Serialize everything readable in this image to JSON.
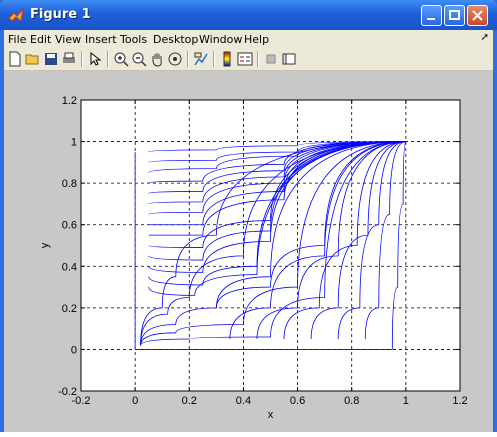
{
  "window": {
    "title": "Figure 1"
  },
  "menu": [
    "File",
    "Edit",
    "View",
    "Insert",
    "Tools",
    "Desktop",
    "Window",
    "Help"
  ],
  "menu_underline": [
    0,
    0,
    0,
    0,
    0,
    0,
    0,
    0
  ],
  "toolbar": {
    "icons": [
      "new-file-icon",
      "open-folder-icon",
      "save-icon",
      "print-icon",
      "pointer-icon",
      "zoom-in-icon",
      "zoom-out-icon",
      "pan-hand-icon",
      "rotate-3d-icon",
      "data-cursor-icon",
      "colorbar-icon",
      "legend-icon",
      "hide-plot-tools-icon",
      "show-plot-tools-icon"
    ]
  },
  "colors": {
    "line": "#0000ff",
    "title_bar": "#1e5fd9",
    "figure_bg": "#c8c8c8"
  },
  "chart_data": {
    "type": "line",
    "title": "",
    "xlabel": "x",
    "ylabel": "y",
    "xlim": [
      -0.2,
      1.2
    ],
    "ylim": [
      -0.2,
      1.2
    ],
    "xticks": [
      "-0.2",
      "0",
      "0.2",
      "0.4",
      "0.6",
      "0.8",
      "1",
      "1.2"
    ],
    "yticks": [
      "-0.2",
      "0",
      "0.2",
      "0.4",
      "0.6",
      "0.8",
      "1",
      "1.2"
    ],
    "grid": true,
    "description_series": "Family of trajectories in the unit square: many curves from the upper-left boundary sweeping toward the point (1, 1), and curves from the lower region spreading from near (0, 0) and (0.2, 0.2) toward (1, 1).",
    "series": [
      {
        "values": [
          [
            0.05,
            0.95
          ],
          [
            0.3,
            0.96
          ],
          [
            0.6,
            0.98
          ],
          [
            1,
            1
          ]
        ]
      },
      {
        "values": [
          [
            0.05,
            0.9
          ],
          [
            0.3,
            0.91
          ],
          [
            0.6,
            0.95
          ],
          [
            1,
            1
          ]
        ]
      },
      {
        "values": [
          [
            0.05,
            0.85
          ],
          [
            0.3,
            0.87
          ],
          [
            0.6,
            0.93
          ],
          [
            1,
            1
          ]
        ]
      },
      {
        "values": [
          [
            0.05,
            0.8
          ],
          [
            0.25,
            0.81
          ],
          [
            0.55,
            0.89
          ],
          [
            1,
            1
          ]
        ]
      },
      {
        "values": [
          [
            0.05,
            0.75
          ],
          [
            0.25,
            0.76
          ],
          [
            0.55,
            0.86
          ],
          [
            1,
            1
          ]
        ]
      },
      {
        "values": [
          [
            0.05,
            0.7
          ],
          [
            0.25,
            0.71
          ],
          [
            0.55,
            0.83
          ],
          [
            1,
            1
          ]
        ]
      },
      {
        "values": [
          [
            0.05,
            0.65
          ],
          [
            0.25,
            0.66
          ],
          [
            0.55,
            0.8
          ],
          [
            1,
            1
          ]
        ]
      },
      {
        "values": [
          [
            0.05,
            0.6
          ],
          [
            0.25,
            0.6
          ],
          [
            0.55,
            0.76
          ],
          [
            1,
            1
          ]
        ]
      },
      {
        "values": [
          [
            0.05,
            0.55
          ],
          [
            0.25,
            0.55
          ],
          [
            0.55,
            0.72
          ],
          [
            1,
            1
          ]
        ]
      },
      {
        "values": [
          [
            0.05,
            0.5
          ],
          [
            0.25,
            0.49
          ],
          [
            0.5,
            0.62
          ],
          [
            1,
            1
          ]
        ]
      },
      {
        "values": [
          [
            0.05,
            0.45
          ],
          [
            0.25,
            0.43
          ],
          [
            0.5,
            0.57
          ],
          [
            1,
            1
          ]
        ]
      },
      {
        "values": [
          [
            0.05,
            0.4
          ],
          [
            0.25,
            0.37
          ],
          [
            0.5,
            0.52
          ],
          [
            1,
            1
          ]
        ]
      },
      {
        "values": [
          [
            0.05,
            0.35
          ],
          [
            0.25,
            0.31
          ],
          [
            0.45,
            0.4
          ],
          [
            1,
            1
          ]
        ]
      },
      {
        "values": [
          [
            0.05,
            0.3
          ],
          [
            0.22,
            0.26
          ],
          [
            0.45,
            0.36
          ],
          [
            1,
            1
          ]
        ]
      },
      {
        "values": [
          [
            0.02,
            0.02
          ],
          [
            0.1,
            0.2
          ],
          [
            0.15,
            0.35
          ],
          [
            0.3,
            0.55
          ],
          [
            1,
            1
          ]
        ]
      },
      {
        "values": [
          [
            0.02,
            0.02
          ],
          [
            0.12,
            0.17
          ],
          [
            0.2,
            0.25
          ],
          [
            0.4,
            0.45
          ],
          [
            1,
            1
          ]
        ]
      },
      {
        "values": [
          [
            0.02,
            0.02
          ],
          [
            0.15,
            0.12
          ],
          [
            0.3,
            0.2
          ],
          [
            0.5,
            0.35
          ],
          [
            1,
            1
          ]
        ]
      },
      {
        "values": [
          [
            0.02,
            0.02
          ],
          [
            0.15,
            0.08
          ],
          [
            0.4,
            0.12
          ],
          [
            0.6,
            0.3
          ],
          [
            1,
            1
          ]
        ]
      },
      {
        "values": [
          [
            0.02,
            0.02
          ],
          [
            0.2,
            0.05
          ],
          [
            0.5,
            0.06
          ],
          [
            0.7,
            0.25
          ],
          [
            1,
            1
          ]
        ]
      },
      {
        "values": [
          [
            0.3,
            0.2
          ],
          [
            0.5,
            0.3
          ],
          [
            0.7,
            0.5
          ],
          [
            1,
            1
          ]
        ]
      },
      {
        "values": [
          [
            0.35,
            0.05
          ],
          [
            0.5,
            0.2
          ],
          [
            0.7,
            0.45
          ],
          [
            1,
            1
          ]
        ]
      },
      {
        "values": [
          [
            0.45,
            0.05
          ],
          [
            0.6,
            0.2
          ],
          [
            0.75,
            0.45
          ],
          [
            1,
            1
          ]
        ]
      },
      {
        "values": [
          [
            0.55,
            0.05
          ],
          [
            0.68,
            0.2
          ],
          [
            0.82,
            0.5
          ],
          [
            1,
            1
          ]
        ]
      },
      {
        "values": [
          [
            0.65,
            0.05
          ],
          [
            0.75,
            0.2
          ],
          [
            0.86,
            0.55
          ],
          [
            1,
            1
          ]
        ]
      },
      {
        "values": [
          [
            0.75,
            0.05
          ],
          [
            0.83,
            0.2
          ],
          [
            0.9,
            0.6
          ],
          [
            1,
            1
          ]
        ]
      },
      {
        "values": [
          [
            0.85,
            0.05
          ],
          [
            0.9,
            0.2
          ],
          [
            0.94,
            0.65
          ],
          [
            1,
            1
          ]
        ]
      },
      {
        "values": [
          [
            0.95,
            0.0
          ],
          [
            0.97,
            0.3
          ],
          [
            0.99,
            0.7
          ],
          [
            1,
            1
          ]
        ]
      }
    ]
  }
}
